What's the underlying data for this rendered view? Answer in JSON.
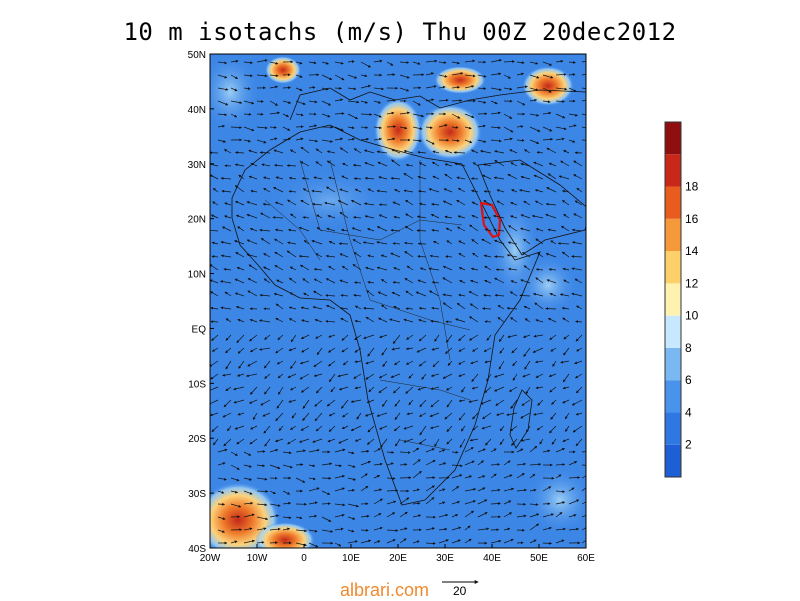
{
  "title": "10 m isotachs (m/s) Thu 00Z 20dec2012",
  "lat_labels": [
    "50N",
    "40N",
    "30N",
    "20N",
    "10N",
    "EQ",
    "10S",
    "20S",
    "30S",
    "40S"
  ],
  "lon_labels": [
    "20W",
    "10W",
    "0",
    "10E",
    "20E",
    "30E",
    "40E",
    "50E",
    "60E"
  ],
  "colorbar": {
    "labels": [
      "2",
      "4",
      "6",
      "8",
      "10",
      "12",
      "14",
      "16",
      "18"
    ],
    "colors": [
      "#1f5fd6",
      "#2f78e4",
      "#4a93ec",
      "#7ab8f2",
      "#c8e8ff",
      "#fff2b0",
      "#fdd06a",
      "#f49a3a",
      "#e85d1e",
      "#c8281a",
      "#8f0f10"
    ]
  },
  "wind_field": {
    "background_color": "#3c86e6",
    "high_wind_color": "#e55a1e"
  },
  "annotation_outline_color": "#e01010",
  "vector_reference_label": "20",
  "watermark": "albrari.com"
}
